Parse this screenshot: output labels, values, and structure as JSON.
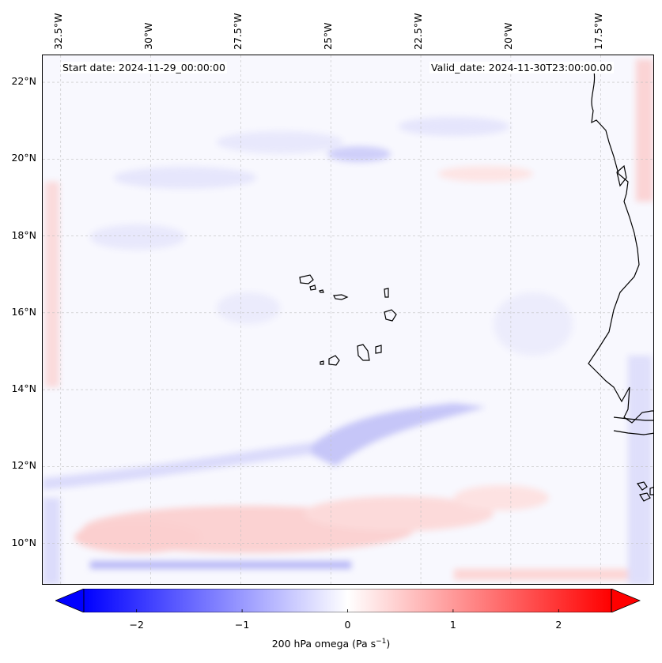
{
  "header": {
    "start_date": "Start date: 2024-11-29_00:00:00",
    "valid_date": "Valid_date: 2024-11-30T23:00:00.00"
  },
  "map": {
    "variable": "200 hPa omega",
    "extent": {
      "lon_min": -33.0,
      "lon_max": -16.0,
      "lat_min": 8.9,
      "lat_max": 22.7
    },
    "longitude_labels": [
      {
        "value": -32.5,
        "text": "32.5°W"
      },
      {
        "value": -30.0,
        "text": "30°W"
      },
      {
        "value": -27.5,
        "text": "27.5°W"
      },
      {
        "value": -25.0,
        "text": "25°W"
      },
      {
        "value": -22.5,
        "text": "22.5°W"
      },
      {
        "value": -20.0,
        "text": "20°W"
      },
      {
        "value": -17.5,
        "text": "17.5°W"
      }
    ],
    "latitude_labels": [
      {
        "value": 22,
        "text": "22°N"
      },
      {
        "value": 20,
        "text": "20°N"
      },
      {
        "value": 18,
        "text": "18°N"
      },
      {
        "value": 16,
        "text": "16°N"
      },
      {
        "value": 14,
        "text": "14°N"
      },
      {
        "value": 12,
        "text": "12°N"
      },
      {
        "value": 10,
        "text": "10°N"
      }
    ],
    "gridlines": true,
    "coastline": "West Africa and Cape Verde islands",
    "colors": {
      "negative": "#0000ff",
      "zero": "#ffffff",
      "positive": "#ff0000",
      "coast": "#000000"
    }
  },
  "colorbar": {
    "min": -2.5,
    "max": 2.5,
    "extend": "both",
    "ticks": [
      {
        "value": -2,
        "text": "−2"
      },
      {
        "value": -1,
        "text": "−1"
      },
      {
        "value": 0,
        "text": "0"
      },
      {
        "value": 1,
        "text": "1"
      },
      {
        "value": 2,
        "text": "2"
      }
    ],
    "label_main": "200 hPa omega (Pa s",
    "label_sup": "−1",
    "label_end": ")"
  }
}
